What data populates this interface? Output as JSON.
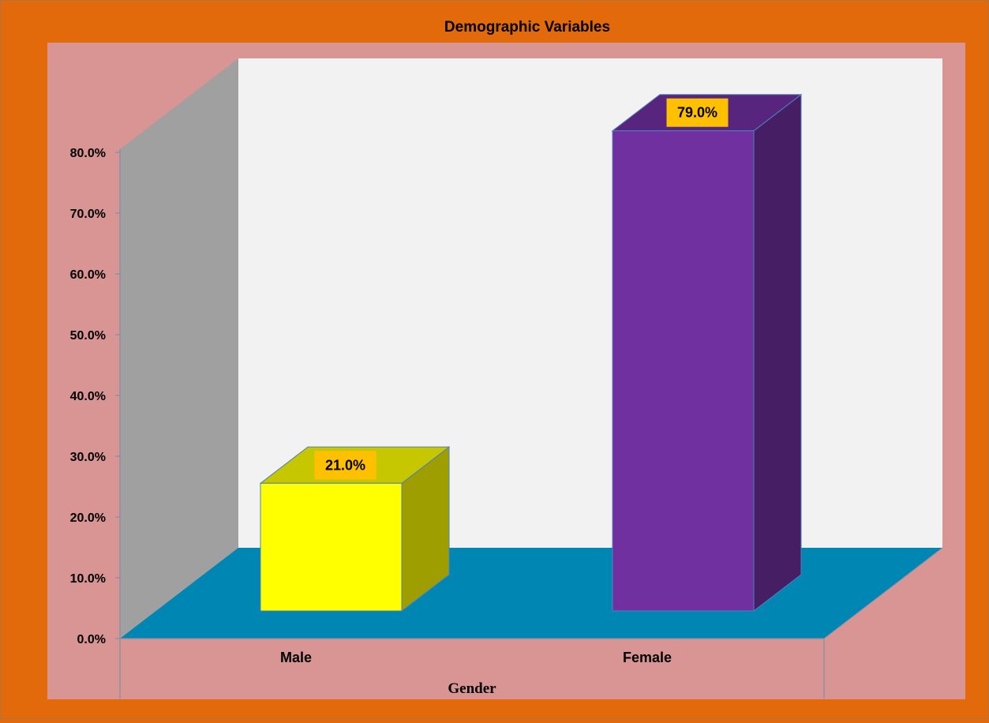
{
  "chart_data": {
    "type": "bar",
    "title": "Demographic Variables",
    "xlabel": "Gender",
    "ylabel": "",
    "categories": [
      "Male",
      "Female"
    ],
    "values": [
      21.0,
      79.0
    ],
    "data_labels": [
      "21.0%",
      "79.0%"
    ],
    "yticks": [
      "0.0%",
      "10.0%",
      "20.0%",
      "30.0%",
      "40.0%",
      "50.0%",
      "60.0%",
      "70.0%",
      "80.0%"
    ],
    "ylim": [
      0,
      80
    ],
    "grid": false,
    "legend": "none"
  },
  "colors": {
    "outer_background": "#e26a0a",
    "plot_area": "#d99594",
    "back_wall": "#f2f2f2",
    "side_wall": "#a0a0a0",
    "floor": "#0086b3",
    "male_bar": "#ffff00",
    "female_bar": "#7030a0",
    "data_label_background": "#ffc000"
  }
}
